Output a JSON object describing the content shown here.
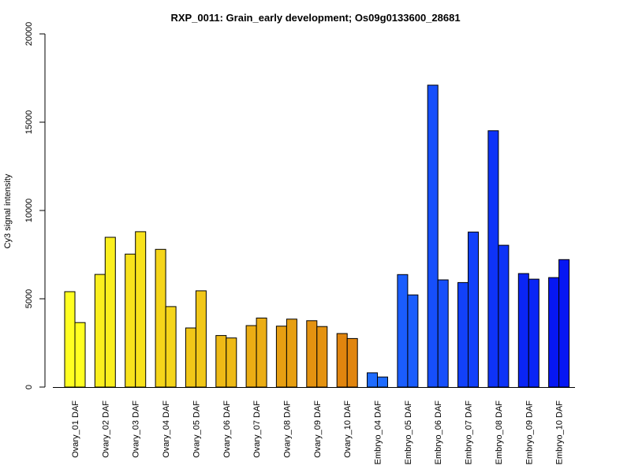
{
  "chart_data": {
    "type": "bar",
    "title": "RXP_0011: Grain_early development; Os09g0133600_28681",
    "xlabel": "",
    "ylabel": "Cy3 signal intensity",
    "ylim": [
      0,
      20000
    ],
    "y_ticks": [
      0,
      5000,
      10000,
      15000,
      20000
    ],
    "y_tick_labels": [
      "0",
      "5000",
      "10000",
      "15000",
      "20000"
    ],
    "categories": [
      "Ovary_01 DAF",
      "Ovary_02 DAF",
      "Ovary_03 DAF",
      "Ovary_04 DAF",
      "Ovary_05 DAF",
      "Ovary_06 DAF",
      "Ovary_07 DAF",
      "Ovary_08 DAF",
      "Ovary_09 DAF",
      "Ovary_10 DAF",
      "Embryo_04 DAF",
      "Embryo_05 DAF",
      "Embryo_06 DAF",
      "Embryo_07 DAF",
      "Embryo_08 DAF",
      "Embryo_09 DAF",
      "Embryo_10 DAF"
    ],
    "replicates": [
      [
        5400,
        3650
      ],
      [
        6380,
        8480
      ],
      [
        7530,
        8800
      ],
      [
        7800,
        4560
      ],
      [
        3350,
        5450
      ],
      [
        2920,
        2780
      ],
      [
        3480,
        3910
      ],
      [
        3450,
        3850
      ],
      [
        3760,
        3430
      ],
      [
        3030,
        2750
      ],
      [
        810,
        570
      ],
      [
        6370,
        5220
      ],
      [
        17100,
        6070
      ],
      [
        5920,
        8780
      ],
      [
        14520,
        8030
      ],
      [
        6430,
        6110
      ],
      [
        6200,
        7220
      ]
    ],
    "colors": [
      "#ffff22",
      "#fbef1e",
      "#f8e21c",
      "#f5d51a",
      "#f1c718",
      "#eeba16",
      "#ebad14",
      "#e79f12",
      "#e49210",
      "#e1850e",
      "#1e6bff",
      "#1a5dfd",
      "#164ffb",
      "#1241f9",
      "#0e33f7",
      "#0a25f5",
      "#0617f3"
    ],
    "grid": false,
    "legend": "none"
  }
}
